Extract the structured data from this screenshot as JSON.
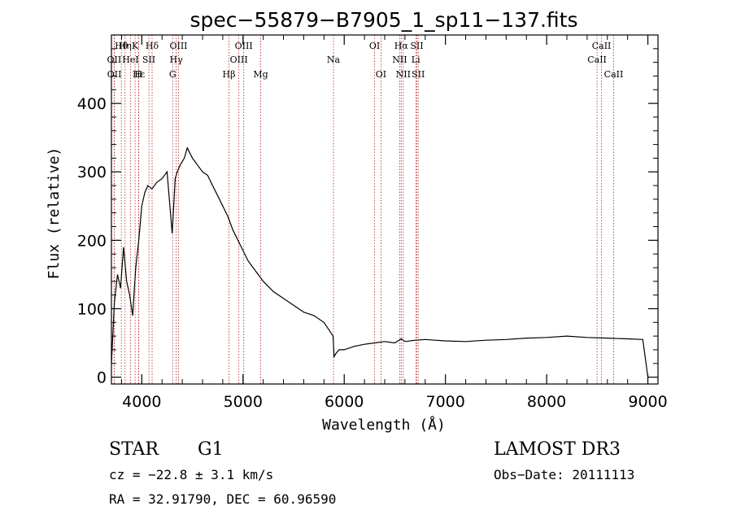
{
  "chart_data": {
    "type": "line",
    "title": "spec−55879−B7905_1_sp11−137.fits",
    "xlabel": "Wavelength (Å)",
    "ylabel": "Flux (relative)",
    "xlim": [
      3700,
      9100
    ],
    "ylim": [
      -10,
      500
    ],
    "xticks": [
      4000,
      5000,
      6000,
      7000,
      8000,
      9000
    ],
    "xtick_labels": [
      "4000",
      "5000",
      "6000",
      "7000",
      "8000",
      "9000"
    ],
    "yticks": [
      0,
      100,
      200,
      300,
      400
    ],
    "ytick_labels": [
      "0",
      "100",
      "200",
      "300",
      "400"
    ],
    "grid": false,
    "series": [
      {
        "name": "spectrum",
        "x": [
          3700,
          3730,
          3760,
          3790,
          3820,
          3850,
          3880,
          3910,
          3940,
          3970,
          4000,
          4030,
          4060,
          4100,
          4150,
          4200,
          4250,
          4300,
          4330,
          4350,
          4380,
          4420,
          4450,
          4500,
          4550,
          4600,
          4650,
          4700,
          4750,
          4800,
          4850,
          4900,
          4950,
          5000,
          5050,
          5100,
          5150,
          5200,
          5300,
          5400,
          5500,
          5600,
          5700,
          5800,
          5890,
          5900,
          5920,
          5950,
          6000,
          6100,
          6200,
          6300,
          6400,
          6500,
          6563,
          6600,
          6700,
          6800,
          6900,
          7000,
          7200,
          7400,
          7600,
          7800,
          8000,
          8200,
          8400,
          8600,
          8800,
          8950,
          9000
        ],
        "values": [
          20,
          110,
          150,
          130,
          190,
          140,
          120,
          90,
          160,
          200,
          250,
          270,
          280,
          275,
          285,
          290,
          300,
          210,
          290,
          300,
          310,
          320,
          335,
          320,
          310,
          300,
          295,
          280,
          265,
          250,
          235,
          215,
          200,
          185,
          170,
          160,
          150,
          140,
          125,
          115,
          105,
          95,
          90,
          80,
          60,
          30,
          35,
          40,
          40,
          45,
          48,
          50,
          52,
          50,
          56,
          52,
          54,
          55,
          54,
          53,
          52,
          54,
          55,
          57,
          58,
          60,
          58,
          57,
          56,
          55,
          0
        ]
      }
    ],
    "lines": [
      {
        "name": "OII",
        "x": 3727,
        "row": 2
      },
      {
        "name": "OII",
        "x": 3729,
        "row": 3
      },
      {
        "name": "Hθ",
        "x": 3798,
        "row": 1
      },
      {
        "name": "Hη",
        "x": 3835,
        "row": 1
      },
      {
        "name": "HeI",
        "x": 3889,
        "row": 2
      },
      {
        "name": "K",
        "x": 3934,
        "row": 1
      },
      {
        "name": "Hε",
        "x": 3970,
        "row": 3
      },
      {
        "name": "H",
        "x": 3968,
        "row": 3
      },
      {
        "name": "SII",
        "x": 4070,
        "row": 2
      },
      {
        "name": "Hδ",
        "x": 4102,
        "row": 1
      },
      {
        "name": "G",
        "x": 4305,
        "row": 3
      },
      {
        "name": "Hγ",
        "x": 4340,
        "row": 2
      },
      {
        "name": "OIII",
        "x": 4363,
        "row": 1
      },
      {
        "name": "Hβ",
        "x": 4861,
        "row": 3
      },
      {
        "name": "OIII",
        "x": 4959,
        "row": 2
      },
      {
        "name": "OIII",
        "x": 5007,
        "row": 1
      },
      {
        "name": "Mg",
        "x": 5175,
        "row": 3
      },
      {
        "name": "Na",
        "x": 5894,
        "row": 2
      },
      {
        "name": "OI",
        "x": 6300,
        "row": 1
      },
      {
        "name": "OI",
        "x": 6363,
        "row": 3
      },
      {
        "name": "NII",
        "x": 6548,
        "row": 2
      },
      {
        "name": "Hα",
        "x": 6563,
        "row": 1
      },
      {
        "name": "NII",
        "x": 6583,
        "row": 3
      },
      {
        "name": "SII",
        "x": 6717,
        "row": 1
      },
      {
        "name": "Li",
        "x": 6707,
        "row": 2
      },
      {
        "name": "SII",
        "x": 6731,
        "row": 3
      },
      {
        "name": "CaII",
        "x": 8498,
        "row": 2
      },
      {
        "name": "CaII",
        "x": 8542,
        "row": 1
      },
      {
        "name": "CaII",
        "x": 8662,
        "row": 3
      }
    ]
  },
  "info": {
    "class": "STAR",
    "subclass": "G1",
    "survey": "LAMOST DR3",
    "cz": "cz = −22.8 ± 3.1 km/s",
    "obs_date": "Obs−Date: 20111113",
    "radec": "RA =  32.91790, DEC =  60.96590"
  }
}
